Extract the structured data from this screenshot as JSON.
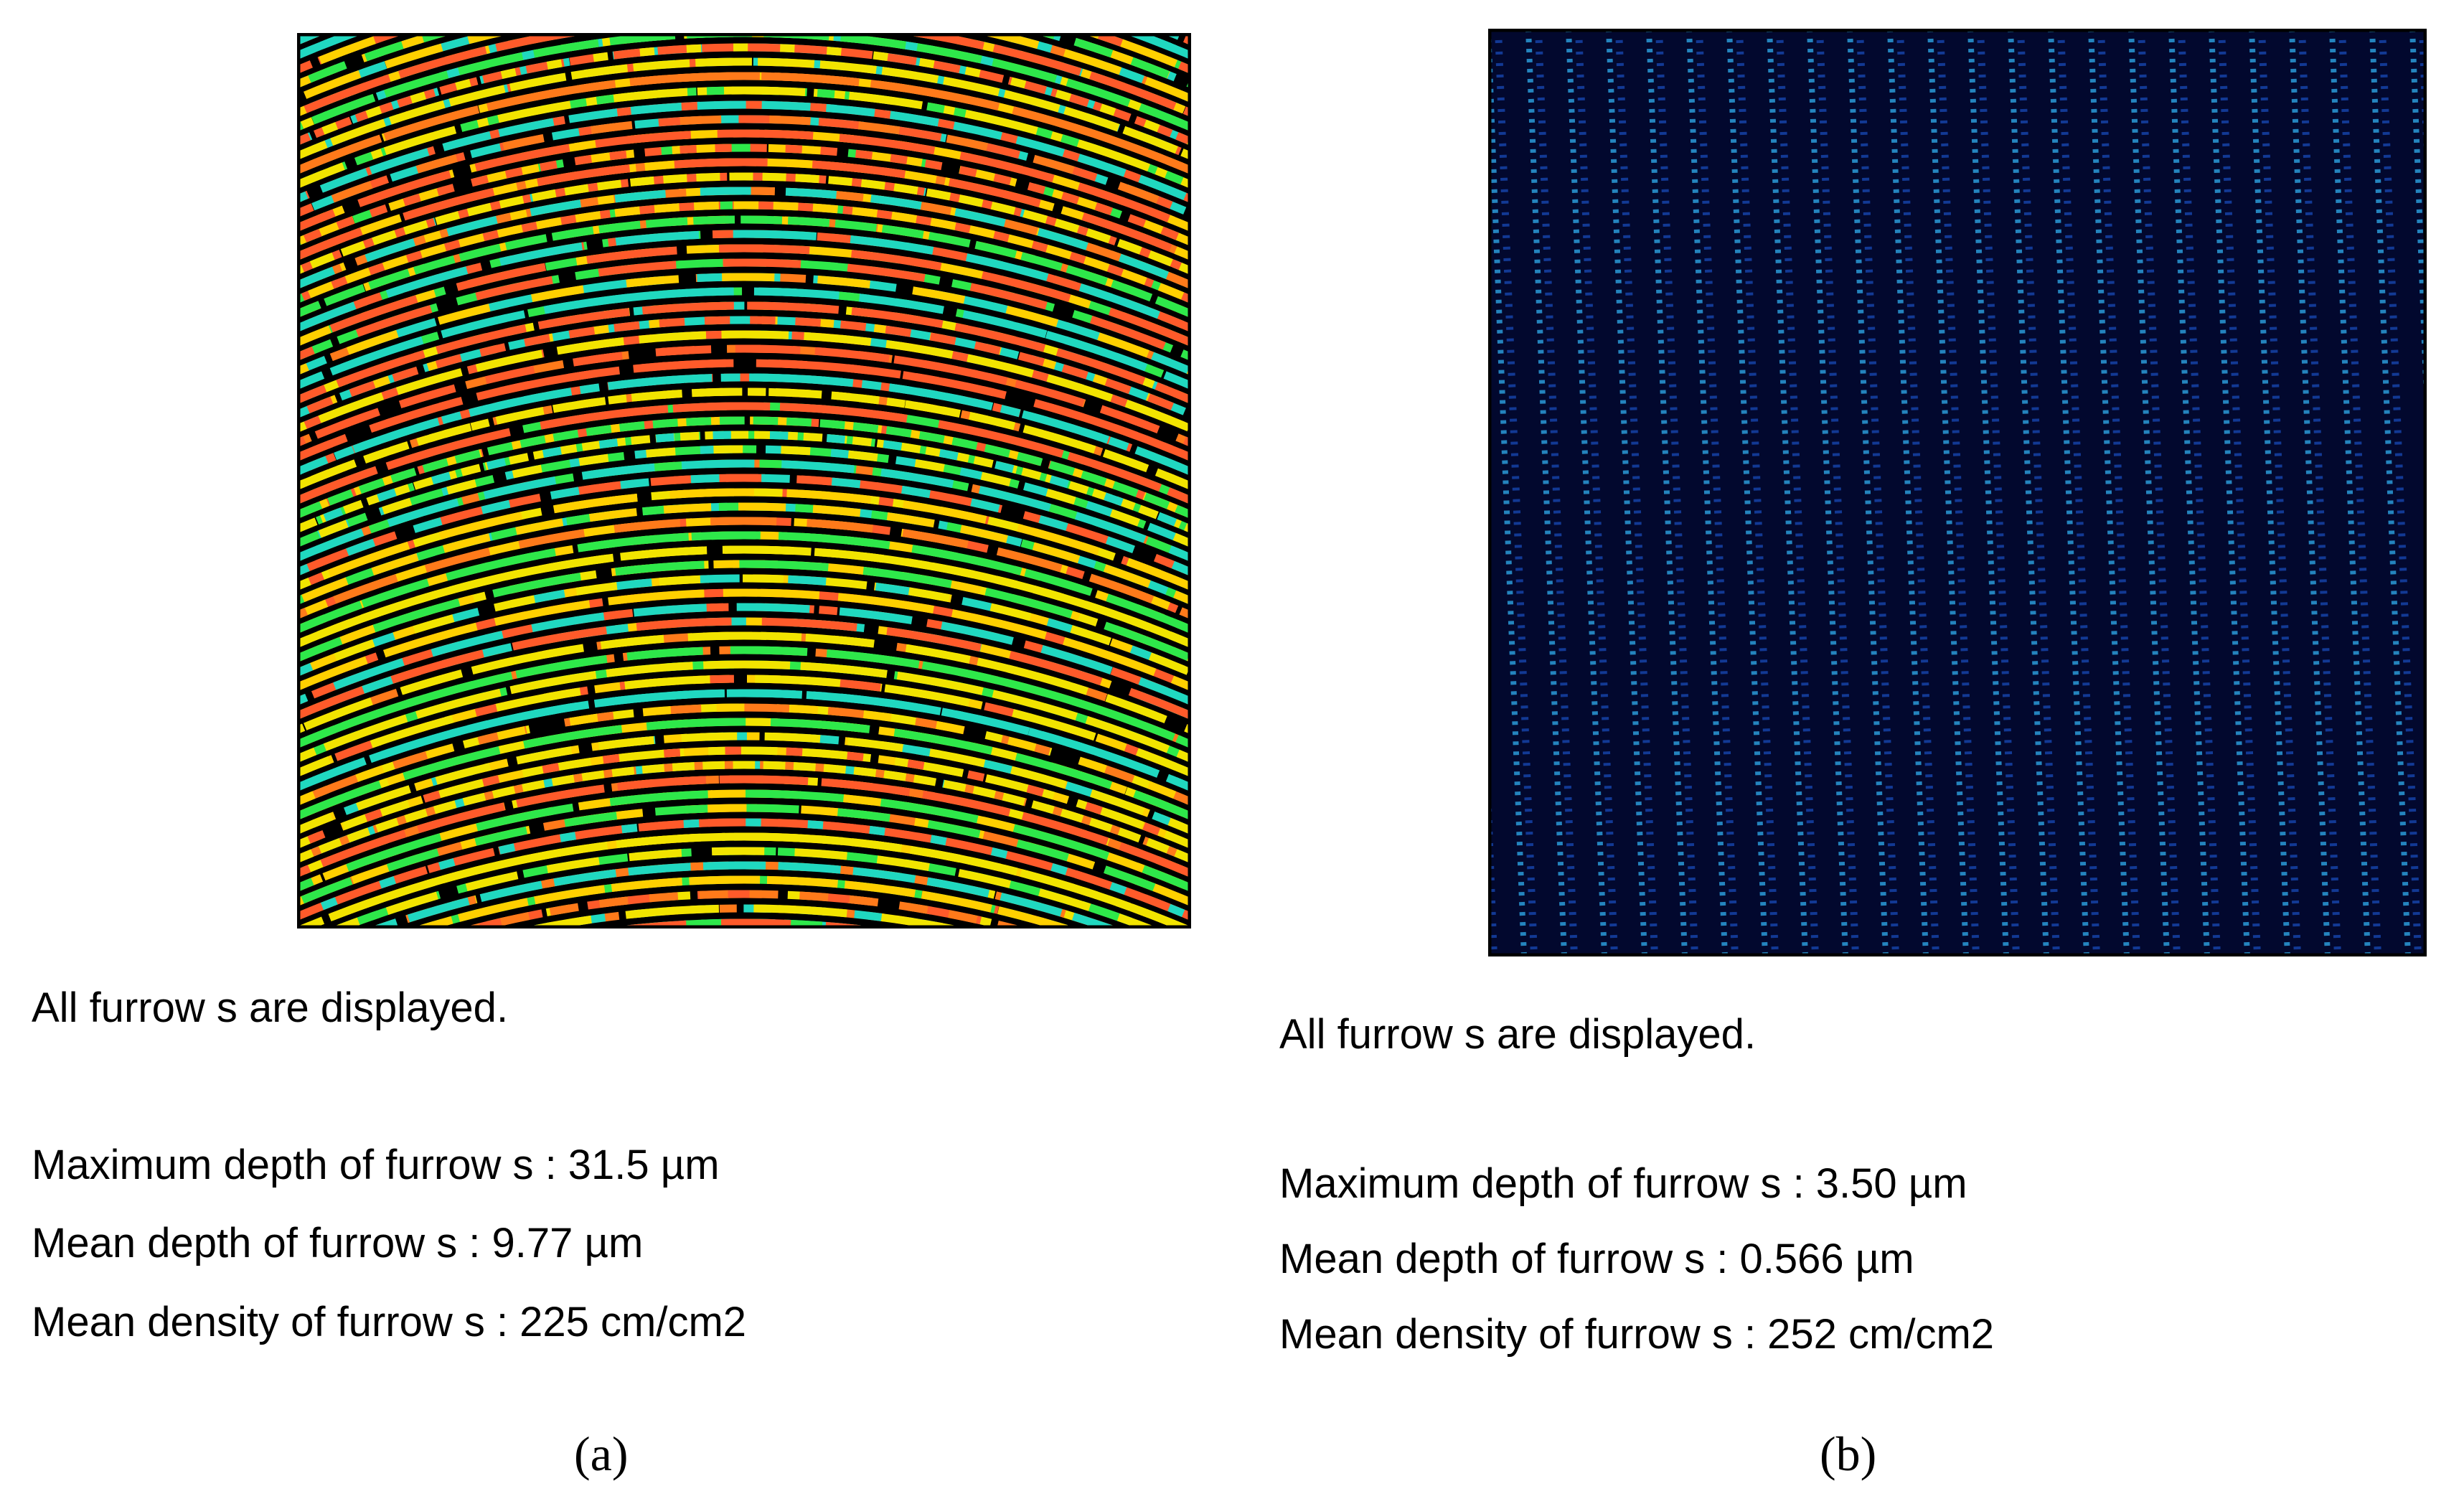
{
  "panels": [
    {
      "label": "(a)",
      "caption": "All furrow s are displayed.",
      "stats": [
        "Maximum depth of furrow s : 31.5 µm",
        "Mean depth of furrow s : 9.77 µm",
        "Mean density of furrow s : 225 cm/cm2"
      ]
    },
    {
      "label": "(b)",
      "caption": "All furrow s are displayed.",
      "stats": [
        "Maximum depth of furrow s : 3.50 µm",
        "Mean depth of furrow s : 0.566 µm",
        "Mean density of furrow s : 252 cm/cm2"
      ]
    }
  ]
}
